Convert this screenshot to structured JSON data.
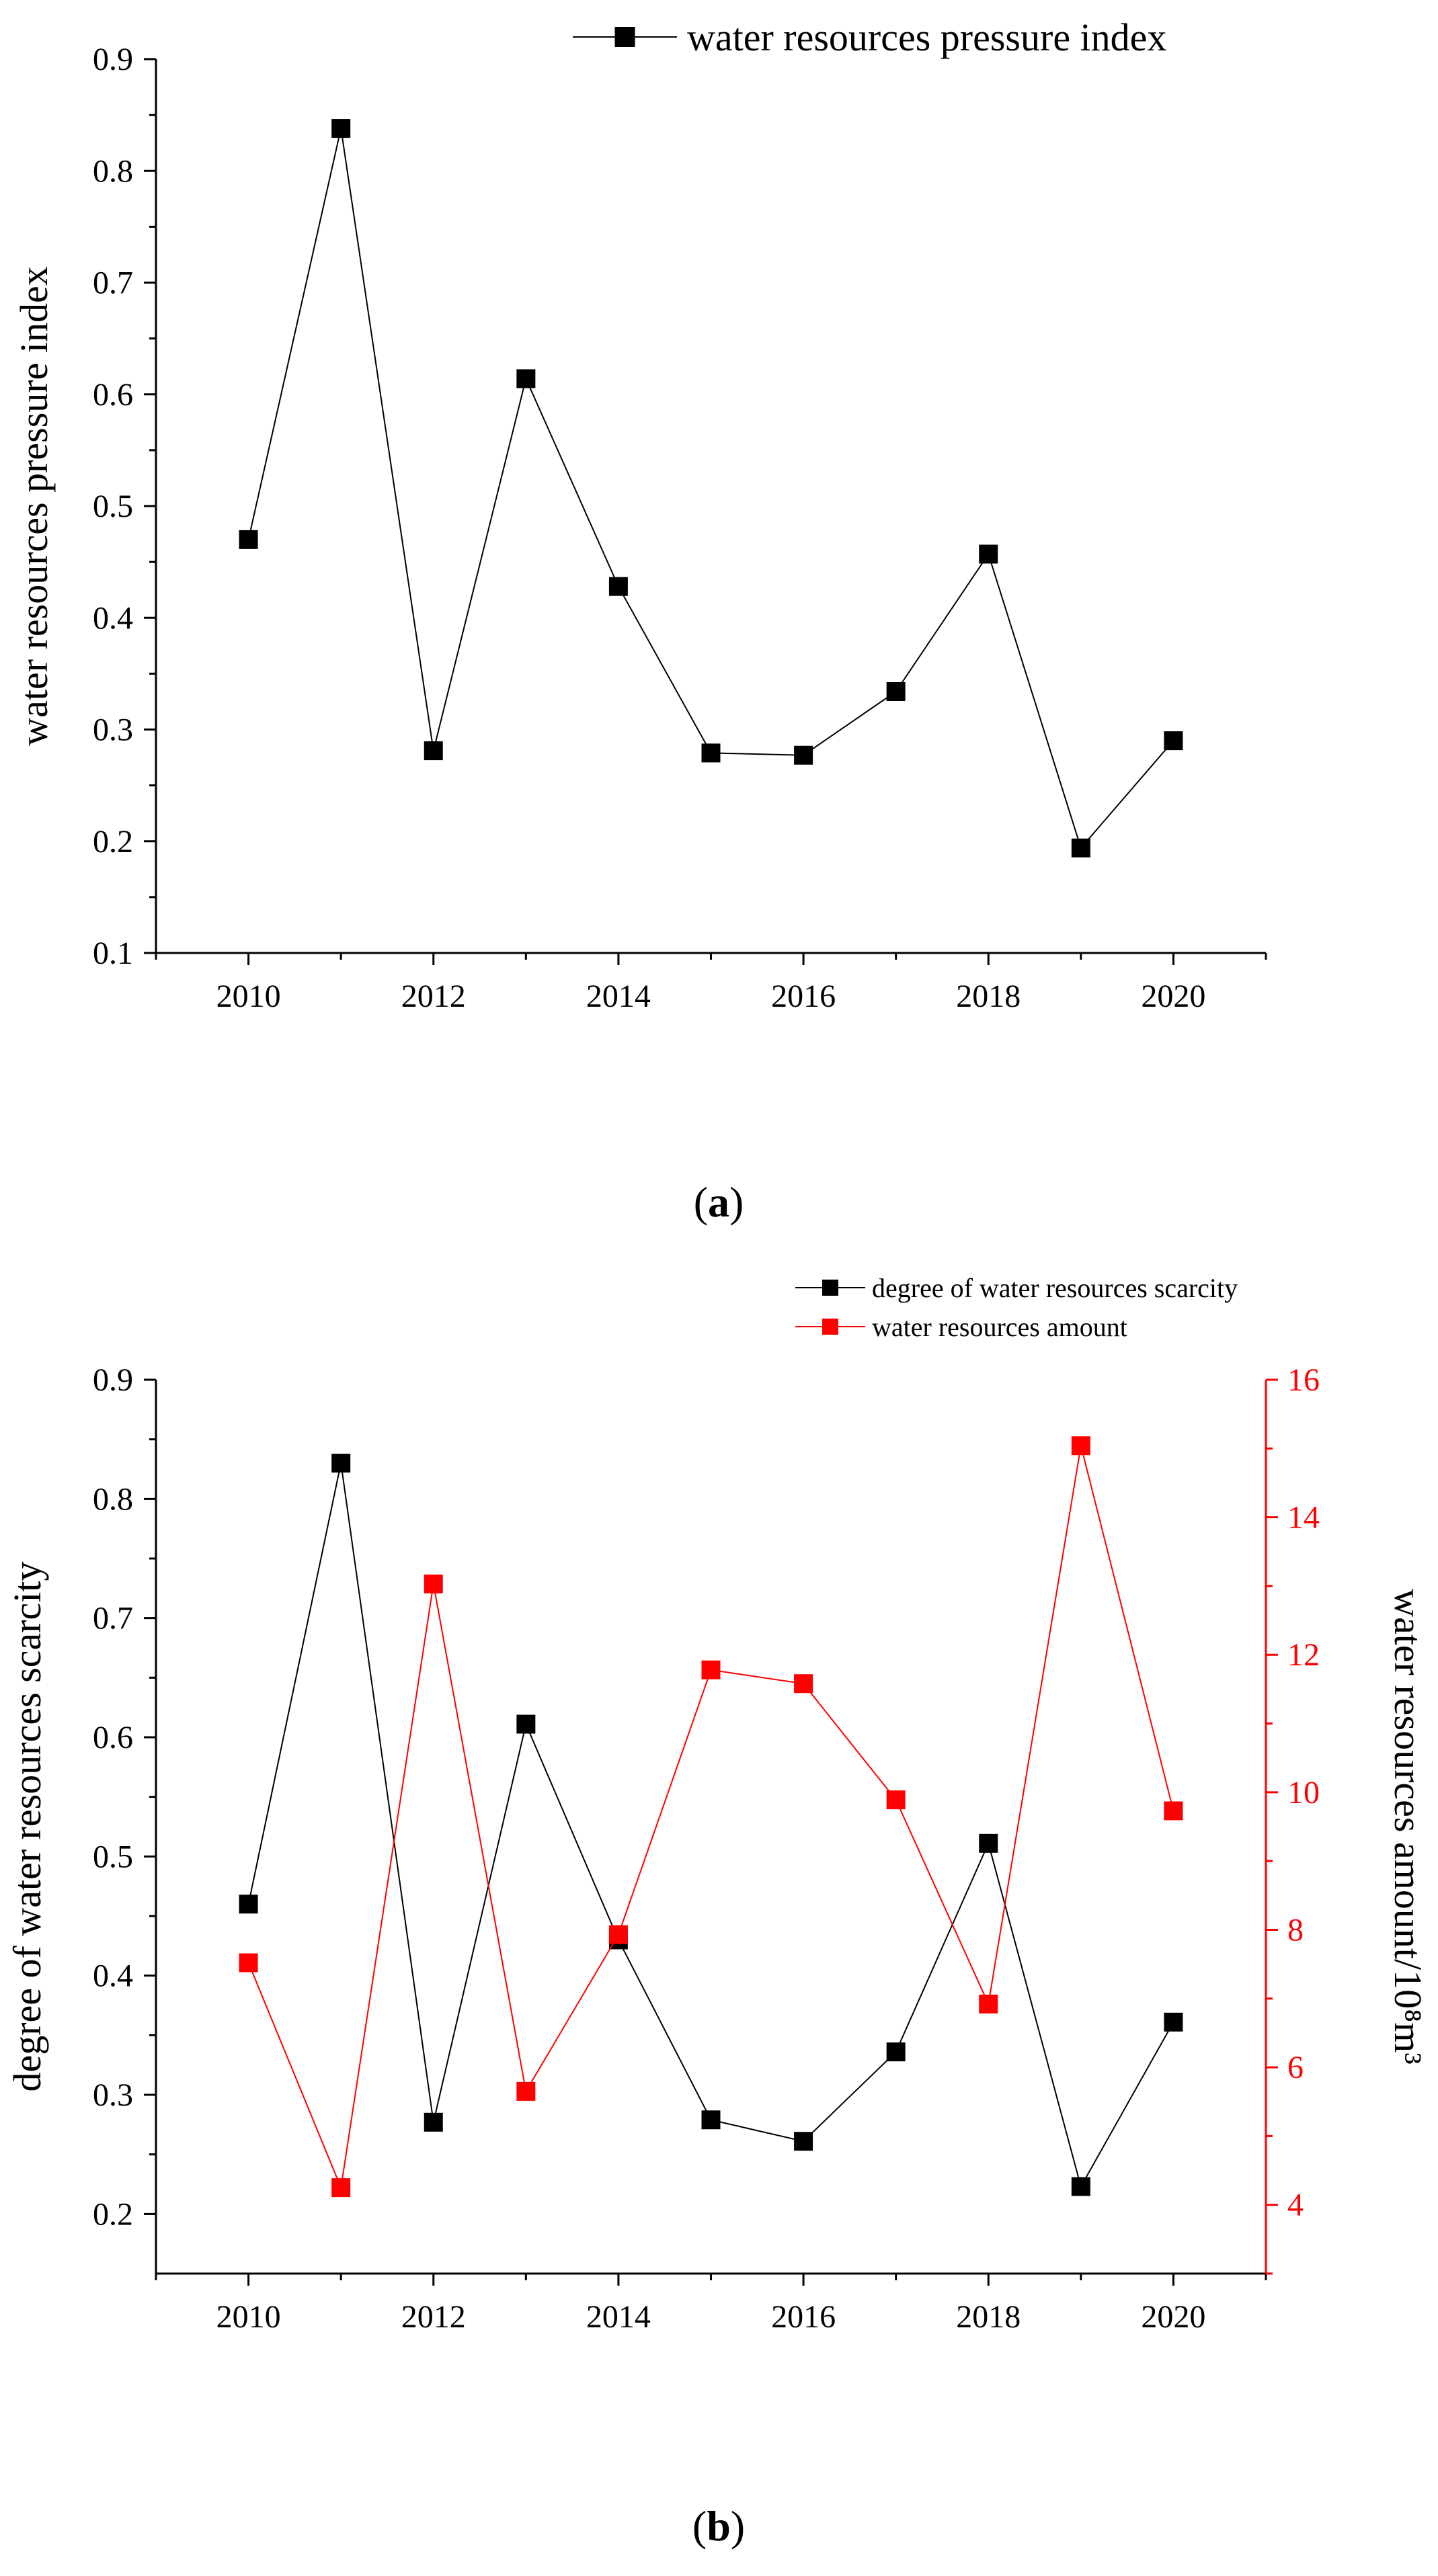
{
  "chart_data": [
    {
      "id": "a",
      "type": "line",
      "caption": "a",
      "x": [
        2010,
        2011,
        2012,
        2013,
        2014,
        2015,
        2016,
        2017,
        2018,
        2019,
        2020
      ],
      "xticks": [
        2010,
        2012,
        2014,
        2016,
        2018,
        2020
      ],
      "xlim": [
        2009,
        2021
      ],
      "ylim": [
        0.1,
        0.9
      ],
      "yticks": [
        0.1,
        0.2,
        0.3,
        0.4,
        0.5,
        0.6,
        0.7,
        0.8,
        0.9
      ],
      "ylabel": "water resources pressure index",
      "xlabel": "",
      "legend_position": "top-right",
      "series": [
        {
          "name": "water resources pressure index",
          "color": "#000000",
          "marker": "square",
          "axis": "left",
          "values": [
            0.47,
            0.838,
            0.281,
            0.614,
            0.428,
            0.279,
            0.277,
            0.334,
            0.457,
            0.194,
            0.29
          ]
        }
      ]
    },
    {
      "id": "b",
      "type": "line",
      "caption": "b",
      "x": [
        2010,
        2011,
        2012,
        2013,
        2014,
        2015,
        2016,
        2017,
        2018,
        2019,
        2020
      ],
      "xticks": [
        2010,
        2012,
        2014,
        2016,
        2018,
        2020
      ],
      "xlim": [
        2009,
        2021
      ],
      "ylim": [
        0.15,
        0.9
      ],
      "yticks": [
        0.2,
        0.3,
        0.4,
        0.5,
        0.6,
        0.7,
        0.8,
        0.9
      ],
      "y2lim": [
        3,
        16
      ],
      "y2ticks": [
        4,
        6,
        8,
        10,
        12,
        14,
        16
      ],
      "ylabel": "degree of water resources scarcity",
      "y2label": "water resources amount/10⁸m³",
      "xlabel": "",
      "legend_position": "top-right",
      "series": [
        {
          "name": "degree of water resources scarcity",
          "color": "#000000",
          "marker": "square",
          "axis": "left",
          "values": [
            0.46,
            0.83,
            0.277,
            0.611,
            0.43,
            0.279,
            0.261,
            0.336,
            0.511,
            0.223,
            0.361
          ]
        },
        {
          "name": "water resources amount",
          "color": "#ff0000",
          "marker": "square",
          "axis": "right",
          "values": [
            7.52,
            4.25,
            13.03,
            5.65,
            7.93,
            11.78,
            11.58,
            9.89,
            6.92,
            15.04,
            9.73
          ]
        }
      ]
    }
  ]
}
